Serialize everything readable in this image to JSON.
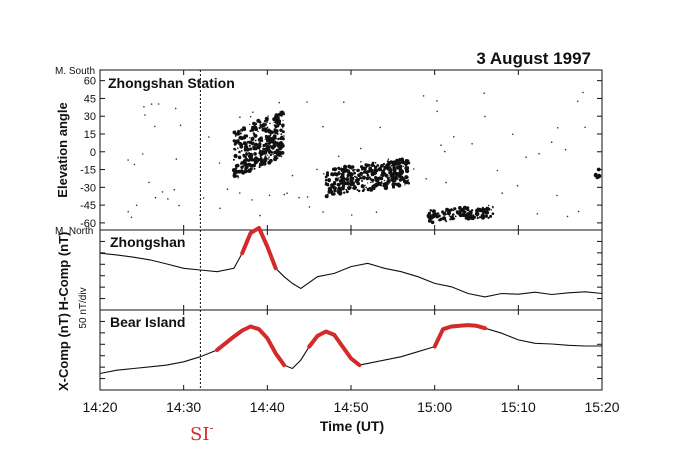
{
  "chart_data": {
    "type": "line",
    "title": "3 August 1997",
    "xlabel": "Time (UT)",
    "x_ticks": [
      "14:20",
      "14:30",
      "14:40",
      "14:50",
      "15:00",
      "15:10",
      "15:20"
    ],
    "xlim": [
      "14:20",
      "15:20"
    ],
    "event_marker": {
      "time": "14:32",
      "label": "SI",
      "superscript": "-",
      "color": "#d42a2a"
    },
    "panels": [
      {
        "type": "scatter",
        "station": "Zhongshan Station",
        "ylabel": "Elevation angle",
        "top_label": "M. South",
        "bottom_label": "M. North",
        "y_ticks": [
          60,
          45,
          30,
          15,
          0,
          -15,
          -30,
          -45,
          -60
        ],
        "ylim": [
          -66,
          69
        ],
        "clusters": [
          {
            "t_start": "14:36",
            "t_end": "14:42",
            "elev_min": -22,
            "elev_max": 35
          },
          {
            "t_start": "14:47",
            "t_end": "14:57",
            "elev_min": -38,
            "elev_max": -5
          },
          {
            "t_start": "14:59",
            "t_end": "15:07",
            "elev_min": -60,
            "elev_max": -45
          },
          {
            "t_start": "15:19",
            "t_end": "15:22",
            "elev_min": -24,
            "elev_max": -14
          }
        ]
      },
      {
        "type": "line",
        "series": [
          {
            "name": "Zhongshan",
            "component": "H-Comp (nT)"
          }
        ],
        "ylabel": "H-Comp (nT)",
        "t": [
          "14:20",
          "14:22",
          "14:24",
          "14:26",
          "14:28",
          "14:30",
          "14:32",
          "14:34",
          "14:36",
          "14:37",
          "14:38",
          "14:39",
          "14:40",
          "14:41",
          "14:42",
          "14:43",
          "14:44",
          "14:46",
          "14:48",
          "14:50",
          "14:52",
          "14:54",
          "14:56",
          "14:58",
          "15:00",
          "15:02",
          "15:04",
          "15:06",
          "15:08",
          "15:10",
          "15:12",
          "15:14",
          "15:16",
          "15:18",
          "15:20"
        ],
        "values": [
          0.5,
          0.45,
          0.38,
          0.3,
          0.18,
          0.05,
          0.0,
          -0.05,
          0.05,
          0.5,
          1.1,
          1.25,
          0.7,
          0.05,
          -0.2,
          -0.4,
          -0.55,
          -0.2,
          -0.1,
          0.1,
          0.2,
          0.05,
          -0.05,
          -0.2,
          -0.4,
          -0.5,
          -0.7,
          -0.8,
          -0.7,
          -0.72,
          -0.66,
          -0.73,
          -0.68,
          -0.65,
          -0.7
        ],
        "highlight": [
          {
            "t_start": "14:37",
            "t_end": "14:41",
            "color": "#d42a2a"
          }
        ]
      },
      {
        "type": "line",
        "series": [
          {
            "name": "Bear Island",
            "component": "X-Comp (nT)"
          }
        ],
        "ylabel": "X-Comp (nT)",
        "scale_label": "50 nT/div",
        "t": [
          "14:20",
          "14:22",
          "14:24",
          "14:26",
          "14:28",
          "14:30",
          "14:32",
          "14:34",
          "14:36",
          "14:37",
          "14:38",
          "14:39",
          "14:40",
          "14:41",
          "14:42",
          "14:43",
          "14:44",
          "14:45",
          "14:46",
          "14:47",
          "14:48",
          "14:49",
          "14:50",
          "14:51",
          "14:52",
          "14:54",
          "14:56",
          "14:58",
          "15:00",
          "15:01",
          "15:02",
          "15:03",
          "15:04",
          "15:05",
          "15:06",
          "15:08",
          "15:10",
          "15:12",
          "15:14",
          "15:16",
          "15:18",
          "15:20"
        ],
        "values": [
          -0.7,
          -0.6,
          -0.55,
          -0.5,
          -0.45,
          -0.35,
          -0.2,
          0.0,
          0.4,
          0.58,
          0.7,
          0.62,
          0.35,
          -0.1,
          -0.45,
          -0.55,
          -0.3,
          0.1,
          0.42,
          0.55,
          0.45,
          0.1,
          -0.25,
          -0.45,
          -0.4,
          -0.3,
          -0.2,
          -0.05,
          0.1,
          0.62,
          0.7,
          0.72,
          0.74,
          0.72,
          0.65,
          0.5,
          0.3,
          0.2,
          0.18,
          0.14,
          0.12,
          0.12
        ],
        "highlight": [
          {
            "t_start": "14:34",
            "t_end": "14:42",
            "color": "#d42a2a"
          },
          {
            "t_start": "14:45",
            "t_end": "14:51",
            "color": "#d42a2a"
          },
          {
            "t_start": "15:00",
            "t_end": "15:06",
            "color": "#d42a2a"
          }
        ]
      }
    ]
  }
}
